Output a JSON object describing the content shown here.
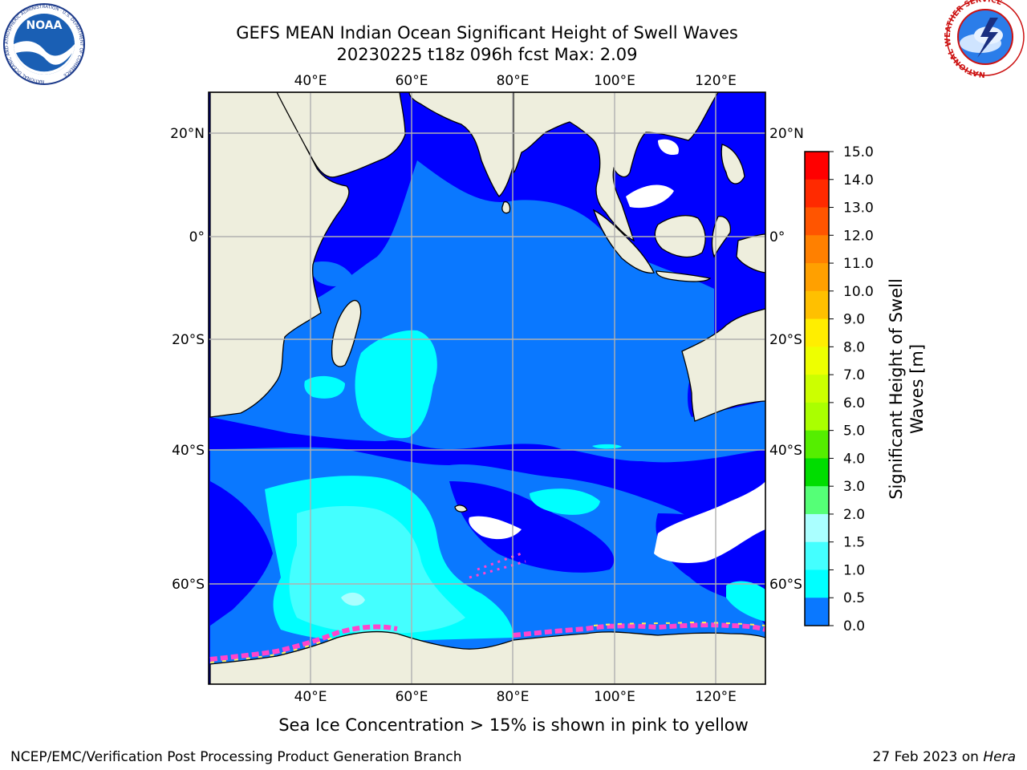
{
  "title": {
    "line1": "GEFS MEAN Indian Ocean Significant Height of Swell Waves",
    "line2": "20230225 t18z 096h fcst   Max: 2.09"
  },
  "logos": {
    "noaa_text": "NOAA",
    "noaa_ring": "NATIONAL OCEANIC AND ATMOSPHERIC ADMINISTRATION · U.S. DEPARTMENT OF COMMERCE",
    "nws_ring": "NATIONAL WEATHER SERVICE"
  },
  "map": {
    "lon_labels": [
      "40°E",
      "60°E",
      "80°E",
      "100°E",
      "120°E"
    ],
    "lat_labels": [
      "20°N",
      "0°",
      "20°S",
      "40°S",
      "60°S"
    ],
    "land_color": "#eeeedd",
    "ocean_colors": {
      "0.0-0.5": "#0000ff",
      "0.5-1.0": "#0a78ff",
      "1.0-1.5": "#00ffff",
      "1.5-2.0": "#44ffff",
      "2.0-3.0": "#aaffff"
    },
    "ice_color": "#ff44cc"
  },
  "colorbar": {
    "title_line1": "Significant Height of Swell",
    "title_line2": "Waves [m]",
    "labels": [
      "15.0",
      "14.0",
      "13.0",
      "12.0",
      "11.0",
      "10.0",
      "9.0",
      "8.0",
      "7.0",
      "6.0",
      "5.0",
      "4.0",
      "3.0",
      "2.0",
      "1.5",
      "1.0",
      "0.5",
      "0.0"
    ],
    "colors": [
      "#ff0000",
      "#ff2a00",
      "#ff5500",
      "#ff8000",
      "#ffa000",
      "#ffc000",
      "#ffee00",
      "#eeff00",
      "#ccff00",
      "#aaff00",
      "#55ee00",
      "#00dd00",
      "#55ff77",
      "#aaffff",
      "#44ffff",
      "#00ffff",
      "#0a78ff",
      "#0000ff"
    ]
  },
  "note": "Sea Ice Concentration > 15% is shown in pink to yellow",
  "footer": {
    "left": "NCEP/EMC/Verification Post Processing Product Generation Branch",
    "right_prefix": "27 Feb 2023 on ",
    "right_host": "Hera"
  }
}
